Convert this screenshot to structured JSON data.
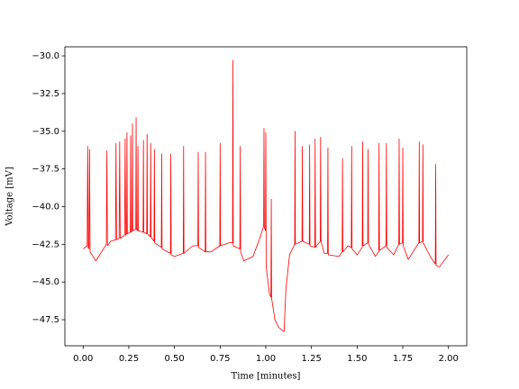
{
  "chart_data": {
    "type": "line",
    "xlabel": "Time [minutes]",
    "ylabel": "Voltage [mV]",
    "xlim": [
      -0.1,
      2.1
    ],
    "ylim": [
      -49.23,
      -29.4
    ],
    "xticks": [
      {
        "value": 0,
        "label": "0.00"
      },
      {
        "value": 0.25,
        "label": "0.25"
      },
      {
        "value": 0.5,
        "label": "0.50"
      },
      {
        "value": 0.75,
        "label": "0.75"
      },
      {
        "value": 1,
        "label": "1.00"
      },
      {
        "value": 1.25,
        "label": "1.25"
      },
      {
        "value": 1.5,
        "label": "1.50"
      },
      {
        "value": 1.75,
        "label": "1.75"
      },
      {
        "value": 2,
        "label": "2.00"
      }
    ],
    "yticks": [
      {
        "value": -47.5,
        "label": "−47.5"
      },
      {
        "value": -45,
        "label": "−45.0"
      },
      {
        "value": -42.5,
        "label": "−42.5"
      },
      {
        "value": -40,
        "label": "−40.0"
      },
      {
        "value": -37.5,
        "label": "−37.5"
      },
      {
        "value": -35,
        "label": "−35.0"
      },
      {
        "value": -32.5,
        "label": "−32.5"
      },
      {
        "value": -30,
        "label": "−30.0"
      }
    ],
    "x": [
      0,
      0.022,
      0.025,
      0.028,
      0.032,
      0.035,
      0.038,
      0.07,
      0.127,
      0.13,
      0.133,
      0.15,
      0.177,
      0.18,
      0.183,
      0.197,
      0.2,
      0.203,
      0.227,
      0.23,
      0.233,
      0.238,
      0.24,
      0.242,
      0.258,
      0.26,
      0.262,
      0.268,
      0.27,
      0.272,
      0.288,
      0.29,
      0.292,
      0.298,
      0.3,
      0.302,
      0.328,
      0.33,
      0.332,
      0.348,
      0.35,
      0.352,
      0.368,
      0.37,
      0.372,
      0.388,
      0.39,
      0.392,
      0.428,
      0.43,
      0.432,
      0.478,
      0.48,
      0.482,
      0.5,
      0.548,
      0.55,
      0.552,
      0.6,
      0.628,
      0.63,
      0.632,
      0.668,
      0.67,
      0.672,
      0.7,
      0.748,
      0.75,
      0.752,
      0.8,
      0.818,
      0.82,
      0.822,
      0.858,
      0.86,
      0.862,
      0.88,
      0.93,
      0.97,
      0.988,
      0.99,
      0.992,
      0.998,
      1.0,
      1.002,
      1.02,
      1.028,
      1.03,
      1.032,
      1.05,
      1.07,
      1.09,
      1.1,
      1.11,
      1.13,
      1.158,
      1.16,
      1.162,
      1.198,
      1.2,
      1.202,
      1.238,
      1.24,
      1.242,
      1.268,
      1.27,
      1.272,
      1.298,
      1.3,
      1.302,
      1.32,
      1.338,
      1.34,
      1.342,
      1.4,
      1.418,
      1.42,
      1.422,
      1.45,
      1.468,
      1.47,
      1.472,
      1.5,
      1.528,
      1.53,
      1.532,
      1.558,
      1.56,
      1.562,
      1.6,
      1.618,
      1.62,
      1.622,
      1.658,
      1.66,
      1.662,
      1.7,
      1.728,
      1.73,
      1.732,
      1.748,
      1.75,
      1.752,
      1.78,
      1.838,
      1.84,
      1.842,
      1.858,
      1.86,
      1.862,
      1.9,
      1.928,
      1.93,
      1.932,
      1.95,
      2.0
    ],
    "series": [
      {
        "color": "#ff0000",
        "values": [
          -42.8,
          -42.6,
          -36,
          -42.7,
          -42.8,
          -36.2,
          -43,
          -43.6,
          -42.5,
          -36.3,
          -42.6,
          -42.3,
          -42.2,
          -35.8,
          -42.2,
          -42.1,
          -35.7,
          -42.1,
          -41.9,
          -35.5,
          -41.9,
          -41.8,
          -35.1,
          -41.8,
          -41.7,
          -35.3,
          -41.7,
          -41.6,
          -34.5,
          -41.6,
          -41.5,
          -34.1,
          -41.5,
          -41.6,
          -36,
          -41.6,
          -41.7,
          -35.6,
          -41.7,
          -41.8,
          -35.2,
          -41.8,
          -42,
          -35.8,
          -42,
          -42.3,
          -36.2,
          -42.4,
          -42.7,
          -36.5,
          -42.8,
          -43.1,
          -36.5,
          -43.2,
          -43.3,
          -43.1,
          -36,
          -43.1,
          -42.6,
          -42.6,
          -36.4,
          -42.7,
          -43,
          -36.4,
          -43,
          -43,
          -42.6,
          -35.8,
          -42.6,
          -42.4,
          -42.4,
          -30.3,
          -42.6,
          -42.8,
          -36,
          -43,
          -43.6,
          -43.3,
          -42,
          -41.3,
          -34.8,
          -41.4,
          -41.6,
          -35.1,
          -44,
          -45.8,
          -46,
          -39.5,
          -46.1,
          -47.5,
          -48,
          -48.2,
          -48.3,
          -45.5,
          -43.2,
          -42.5,
          -35,
          -42.5,
          -42.3,
          -36,
          -42.3,
          -42.5,
          -35.9,
          -42.6,
          -42.7,
          -35.5,
          -42.7,
          -42.3,
          -35.4,
          -42.3,
          -43.1,
          -43.1,
          -36.1,
          -43.2,
          -43.3,
          -43,
          -36.8,
          -43,
          -42.6,
          -42.7,
          -36,
          -42.8,
          -43.2,
          -42.7,
          -35.7,
          -42.6,
          -42.4,
          -36.2,
          -42.5,
          -43.3,
          -43,
          -35.8,
          -42.9,
          -42.6,
          -35.8,
          -42.7,
          -43.2,
          -42.5,
          -35.5,
          -42.5,
          -42.4,
          -36.1,
          -42.6,
          -43.5,
          -42.4,
          -35.7,
          -42.4,
          -42.3,
          -35.9,
          -42.4,
          -43.3,
          -43.8,
          -37.2,
          -43.9,
          -44,
          -43.2
        ]
      }
    ]
  }
}
